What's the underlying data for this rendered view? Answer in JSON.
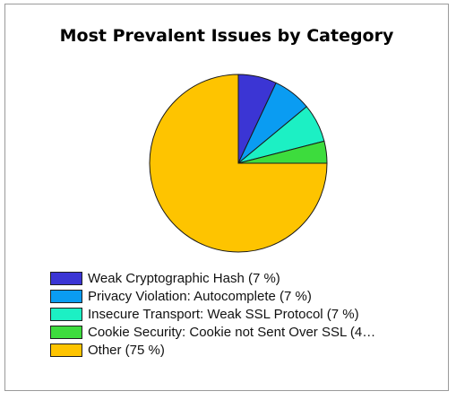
{
  "chart_data": {
    "type": "pie",
    "title": "Most Prevalent Issues by Category",
    "legend_position": "bottom-left",
    "slices": [
      {
        "label": "Weak Cryptographic Hash (7 %)",
        "value": 7,
        "color": "#3b35d4"
      },
      {
        "label": "Privacy Violation: Autocomplete (7 %)",
        "value": 7,
        "color": "#0a9cf2"
      },
      {
        "label": "Insecure Transport: Weak SSL Protocol (7 %)",
        "value": 7,
        "color": "#1cf0c4"
      },
      {
        "label": "Cookie Security: Cookie not Sent Over SSL (4…",
        "value": 4,
        "color": "#3ddc3d"
      },
      {
        "label": "Other (75 %)",
        "value": 75,
        "color": "#fec400"
      }
    ]
  }
}
